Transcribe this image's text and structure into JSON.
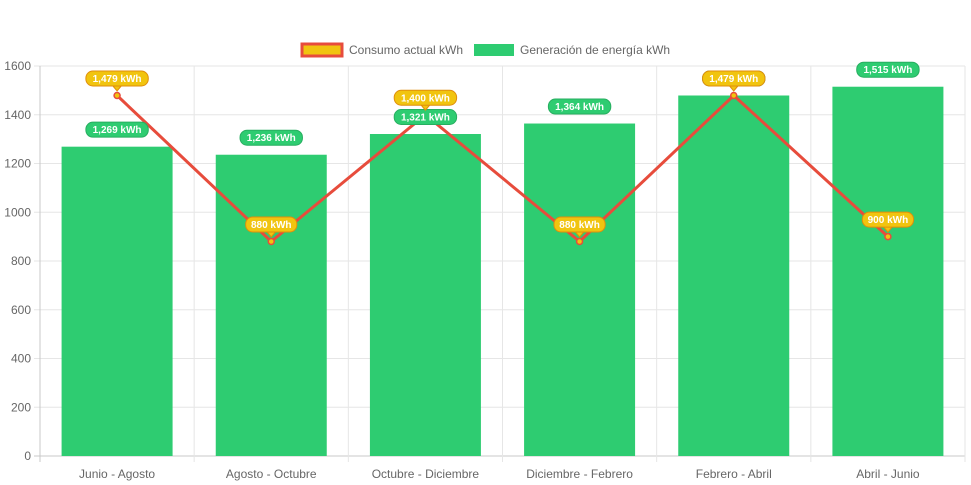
{
  "chart_data": {
    "type": "bar",
    "categories": [
      "Junio - Agosto",
      "Agosto - Octubre",
      "Octubre - Diciembre",
      "Diciembre - Febrero",
      "Febrero - Abril",
      "Abril - Junio"
    ],
    "series": [
      {
        "name": "Generación de energía kWh",
        "type": "bar",
        "color": "#2ecc71",
        "values": [
          1269,
          1236,
          1321,
          1364,
          1479,
          1515
        ],
        "labels": [
          "1,269 kWh",
          "1,236 kWh",
          "1,321 kWh",
          "1,364 kWh",
          "1,479 kWh",
          "1,515 kWh"
        ]
      },
      {
        "name": "Consumo actual kWh",
        "type": "line",
        "color": "#e74c3c",
        "fill_color": "#f1c40f",
        "values": [
          1479,
          880,
          1400,
          880,
          1479,
          900
        ],
        "labels": [
          "1,479 kWh",
          "880 kWh",
          "1,400 kWh",
          "880 kWh",
          "1,479 kWh",
          "900 kWh"
        ]
      }
    ],
    "ylim": [
      0,
      1600
    ],
    "yticks": [
      0,
      200,
      400,
      600,
      800,
      1000,
      1200,
      1400,
      1600
    ],
    "ytick_labels": [
      "0",
      "200",
      "400",
      "600",
      "800",
      "1000",
      "1200",
      "1400",
      "1600"
    ],
    "grid": true,
    "legend_position": "top-center",
    "legend": [
      "Consumo actual kWh",
      "Generación de energía kWh"
    ],
    "title": "",
    "xlabel": "",
    "ylabel": ""
  }
}
